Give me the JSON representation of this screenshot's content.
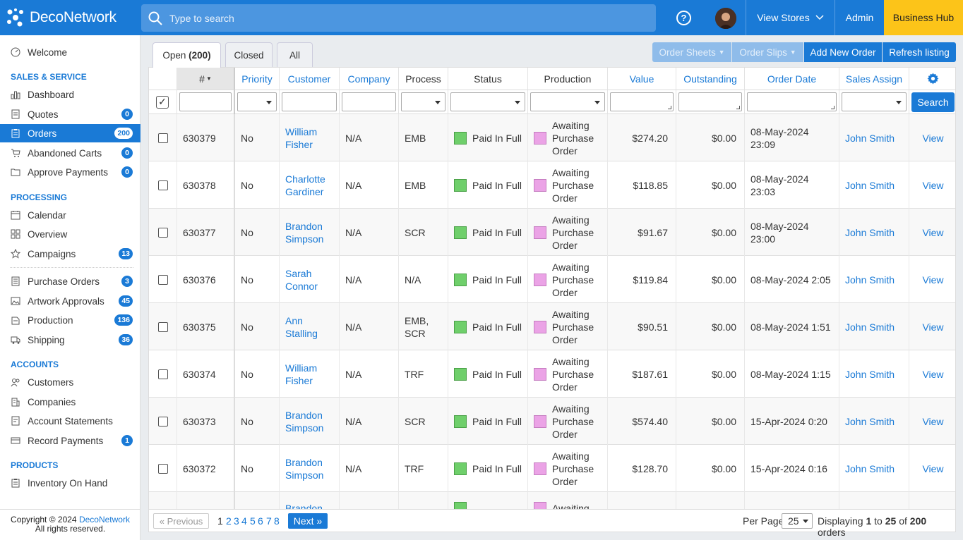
{
  "brand": {
    "name": "DecoNetwork"
  },
  "search": {
    "placeholder": "Type to search"
  },
  "topnav": {
    "help": "?",
    "view_stores": "View Stores",
    "admin": "Admin",
    "business_hub": "Business Hub"
  },
  "sidebar": {
    "welcome": "Welcome",
    "sections": {
      "sales": "SALES & SERVICE",
      "processing": "PROCESSING",
      "accounts": "ACCOUNTS",
      "products": "PRODUCTS"
    },
    "items": {
      "dashboard": {
        "label": "Dashboard"
      },
      "quotes": {
        "label": "Quotes",
        "badge": "0"
      },
      "orders": {
        "label": "Orders",
        "badge": "200"
      },
      "abandoned": {
        "label": "Abandoned Carts",
        "badge": "0"
      },
      "approve": {
        "label": "Approve Payments",
        "badge": "0"
      },
      "calendar": {
        "label": "Calendar"
      },
      "overview": {
        "label": "Overview"
      },
      "campaigns": {
        "label": "Campaigns",
        "badge": "13"
      },
      "purchase": {
        "label": "Purchase Orders",
        "badge": "3"
      },
      "artwork": {
        "label": "Artwork Approvals",
        "badge": "45"
      },
      "production": {
        "label": "Production",
        "badge": "136"
      },
      "shipping": {
        "label": "Shipping",
        "badge": "36"
      },
      "customers": {
        "label": "Customers"
      },
      "companies": {
        "label": "Companies"
      },
      "statements": {
        "label": "Account Statements"
      },
      "payments": {
        "label": "Record Payments",
        "badge": "1"
      },
      "inventory": {
        "label": "Inventory On Hand"
      }
    },
    "copyright": "Copyright © 2024",
    "copyright_link": "DecoNetwork",
    "rights": "All rights reserved."
  },
  "tabs": {
    "open": "Open",
    "open_count": "(200)",
    "closed": "Closed",
    "all": "All"
  },
  "toolbar": {
    "order_sheets": "Order Sheets",
    "order_slips": "Order Slips",
    "add_new": "Add New Order",
    "refresh": "Refresh listing"
  },
  "columns": {
    "num": "#",
    "priority": "Priority",
    "customer": "Customer",
    "company": "Company",
    "process": "Process",
    "status": "Status",
    "production": "Production",
    "value": "Value",
    "outstanding": "Outstanding",
    "order_date": "Order Date",
    "sales_assign": "Sales Assign"
  },
  "filter": {
    "search_button": "Search"
  },
  "orders": [
    {
      "id": "630379",
      "priority": "No",
      "customer": "William Fisher",
      "company": "N/A",
      "process": "EMB",
      "status": "Paid In Full",
      "production": "Awaiting Purchase Order",
      "value": "$274.20",
      "outstanding": "$0.00",
      "date": "08-May-2024 23:09",
      "sales": "John Smith",
      "action": "View"
    },
    {
      "id": "630378",
      "priority": "No",
      "customer": "Charlotte Gardiner",
      "company": "N/A",
      "process": "EMB",
      "status": "Paid In Full",
      "production": "Awaiting Purchase Order",
      "value": "$118.85",
      "outstanding": "$0.00",
      "date": "08-May-2024 23:03",
      "sales": "John Smith",
      "action": "View"
    },
    {
      "id": "630377",
      "priority": "No",
      "customer": "Brandon Simpson",
      "company": "N/A",
      "process": "SCR",
      "status": "Paid In Full",
      "production": "Awaiting Purchase Order",
      "value": "$91.67",
      "outstanding": "$0.00",
      "date": "08-May-2024 23:00",
      "sales": "John Smith",
      "action": "View"
    },
    {
      "id": "630376",
      "priority": "No",
      "customer": "Sarah Connor",
      "company": "N/A",
      "process": "N/A",
      "status": "Paid In Full",
      "production": "Awaiting Purchase Order",
      "value": "$119.84",
      "outstanding": "$0.00",
      "date": "08-May-2024 2:05",
      "sales": "John Smith",
      "action": "View"
    },
    {
      "id": "630375",
      "priority": "No",
      "customer": "Ann Stalling",
      "company": "N/A",
      "process": "EMB, SCR",
      "status": "Paid In Full",
      "production": "Awaiting Purchase Order",
      "value": "$90.51",
      "outstanding": "$0.00",
      "date": "08-May-2024 1:51",
      "sales": "John Smith",
      "action": "View"
    },
    {
      "id": "630374",
      "priority": "No",
      "customer": "William Fisher",
      "company": "N/A",
      "process": "TRF",
      "status": "Paid In Full",
      "production": "Awaiting Purchase Order",
      "value": "$187.61",
      "outstanding": "$0.00",
      "date": "08-May-2024 1:15",
      "sales": "John Smith",
      "action": "View"
    },
    {
      "id": "630373",
      "priority": "No",
      "customer": "Brandon Simpson",
      "company": "N/A",
      "process": "SCR",
      "status": "Paid In Full",
      "production": "Awaiting Purchase Order",
      "value": "$574.40",
      "outstanding": "$0.00",
      "date": "15-Apr-2024 0:20",
      "sales": "John Smith",
      "action": "View"
    },
    {
      "id": "630372",
      "priority": "No",
      "customer": "Brandon Simpson",
      "company": "N/A",
      "process": "TRF",
      "status": "Paid In Full",
      "production": "Awaiting Purchase Order",
      "value": "$128.70",
      "outstanding": "$0.00",
      "date": "15-Apr-2024 0:16",
      "sales": "John Smith",
      "action": "View"
    },
    {
      "id": "",
      "priority": "",
      "customer": "Brandon",
      "company": "",
      "process": "",
      "status": "",
      "production": "Awaiting",
      "value": "",
      "outstanding": "",
      "date": "",
      "sales": "",
      "action": ""
    }
  ],
  "pager": {
    "previous": "« Previous",
    "pages": [
      "1",
      "2",
      "3",
      "4",
      "5",
      "6",
      "7",
      "8"
    ],
    "next": "Next »",
    "per_page_label": "Per Page",
    "per_page": "25",
    "displaying": "Displaying",
    "from": "1",
    "to_word": "to",
    "to": "25",
    "of_word": "of",
    "total": "200",
    "unit": "orders"
  }
}
